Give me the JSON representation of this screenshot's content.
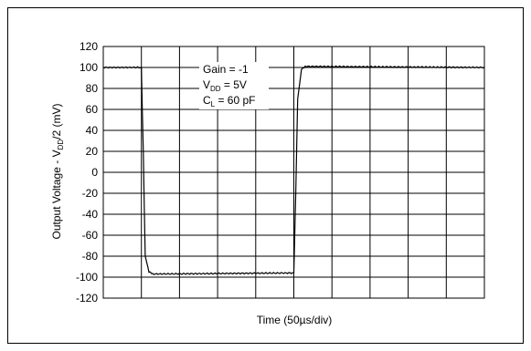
{
  "chart_data": {
    "type": "line",
    "xlabel": "Time (50µs/div)",
    "ylabel": "Output Voltage - VDD/2 (mV)",
    "ylim": [
      -120,
      120
    ],
    "yticks": [
      120,
      100,
      80,
      60,
      40,
      20,
      0,
      -20,
      -40,
      -60,
      -80,
      -100,
      -120
    ],
    "x_divisions": 10,
    "xlim": [
      0,
      10
    ],
    "grid": true,
    "annotations": [
      {
        "text": "Gain = -1"
      },
      {
        "text": "VDD = 5V",
        "main": "V",
        "subscript": "DD",
        "suffix": " = 5V"
      },
      {
        "text": "CL = 60 pF",
        "main": "C",
        "subscript": "L",
        "suffix": " = 60 pF"
      }
    ],
    "series": [
      {
        "values_desc": "square pulse response",
        "x": [
          0,
          1.0,
          1.05,
          1.1,
          1.2,
          1.3,
          5.0,
          5.05,
          5.1,
          5.2,
          5.3,
          10
        ],
        "y": [
          100,
          100,
          20,
          -80,
          -95,
          -97,
          -96,
          -20,
          70,
          98,
          101,
          100
        ]
      }
    ]
  }
}
